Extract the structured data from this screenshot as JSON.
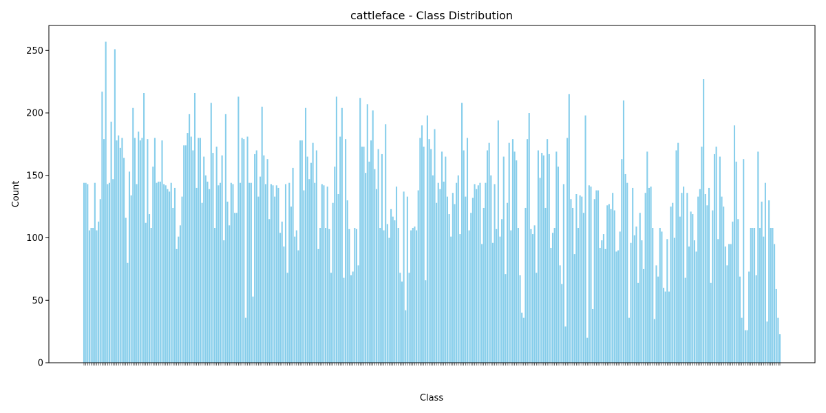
{
  "chart_data": {
    "type": "bar",
    "title": "cattleface - Class Distribution",
    "xlabel": "Class",
    "ylabel": "Count",
    "ylim": [
      0,
      270
    ],
    "yticks": [
      0,
      50,
      100,
      150,
      200,
      250
    ],
    "bar_color": "#87CEEB",
    "values": [
      144,
      144,
      143,
      106,
      108,
      108,
      144,
      106,
      113,
      131,
      217,
      179,
      257,
      143,
      144,
      193,
      147,
      251,
      178,
      182,
      172,
      180,
      164,
      116,
      80,
      153,
      134,
      204,
      180,
      143,
      185,
      178,
      180,
      216,
      112,
      179,
      119,
      108,
      157,
      180,
      144,
      145,
      145,
      178,
      143,
      142,
      139,
      137,
      144,
      124,
      140,
      91,
      101,
      110,
      133,
      174,
      174,
      184,
      199,
      181,
      170,
      216,
      140,
      180,
      180,
      128,
      165,
      150,
      145,
      139,
      208,
      168,
      108,
      173,
      142,
      144,
      166,
      98,
      199,
      129,
      110,
      144,
      143,
      120,
      120,
      213,
      144,
      180,
      179,
      36,
      181,
      144,
      144,
      53,
      167,
      170,
      133,
      149,
      205,
      166,
      143,
      163,
      115,
      143,
      142,
      133,
      142,
      140,
      104,
      113,
      93,
      143,
      72,
      144,
      125,
      156,
      101,
      106,
      90,
      178,
      178,
      138,
      204,
      165,
      147,
      160,
      176,
      144,
      170,
      91,
      108,
      143,
      142,
      108,
      141,
      107,
      72,
      128,
      157,
      213,
      135,
      181,
      204,
      68,
      179,
      130,
      107,
      70,
      73,
      108,
      107,
      78,
      212,
      173,
      173,
      152,
      207,
      161,
      178,
      202,
      155,
      139,
      171,
      108,
      167,
      106,
      191,
      111,
      100,
      123,
      117,
      114,
      141,
      108,
      72,
      65,
      137,
      42,
      133,
      72,
      106,
      108,
      109,
      106,
      138,
      180,
      190,
      173,
      66,
      198,
      179,
      171,
      150,
      187,
      128,
      144,
      139,
      169,
      145,
      165,
      133,
      119,
      101,
      136,
      127,
      144,
      150,
      103,
      208,
      170,
      133,
      180,
      106,
      120,
      132,
      143,
      139,
      142,
      144,
      95,
      124,
      144,
      170,
      176,
      150,
      96,
      143,
      107,
      194,
      101,
      115,
      165,
      71,
      128,
      176,
      106,
      179,
      169,
      162,
      108,
      70,
      40,
      36,
      124,
      179,
      200,
      107,
      103,
      110,
      72,
      170,
      148,
      168,
      166,
      124,
      179,
      167,
      92,
      104,
      108,
      169,
      157,
      78,
      63,
      143,
      29,
      180,
      215,
      131,
      124,
      87,
      135,
      108,
      134,
      133,
      120,
      198,
      20,
      142,
      141,
      43,
      131,
      138,
      138,
      92,
      98,
      103,
      91,
      126,
      127,
      123,
      136,
      122,
      89,
      90,
      105,
      163,
      210,
      151,
      144,
      36,
      96,
      140,
      102,
      109,
      64,
      120,
      98,
      75,
      136,
      169,
      140,
      141,
      108,
      35,
      78,
      69,
      108,
      105,
      60,
      57,
      99,
      57,
      125,
      128,
      100,
      170,
      176,
      117,
      136,
      141,
      68,
      136,
      93,
      121,
      119,
      98,
      89,
      133,
      139,
      173,
      227,
      135,
      126,
      140,
      64,
      122,
      167,
      173,
      99,
      165,
      133,
      125,
      93,
      78,
      95,
      95,
      113,
      190,
      161,
      115,
      69,
      36,
      163,
      26,
      26,
      73,
      108,
      108,
      108,
      70,
      169,
      108,
      129,
      101,
      144,
      33,
      130,
      108,
      108,
      95,
      59,
      36,
      23
    ]
  }
}
